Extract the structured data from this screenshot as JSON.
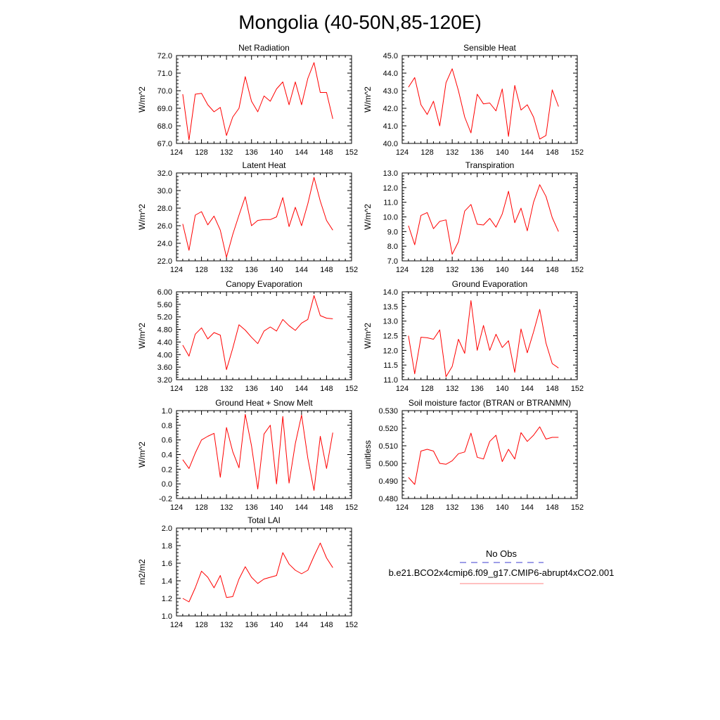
{
  "figure_title": "Mongolia (40-50N,85-120E)",
  "legend": {
    "entries": [
      {
        "label": "No Obs",
        "color": "#3b3bd0",
        "dash": "dashed"
      },
      {
        "label": "b.e21.BCO2x4cmip6.f09_g17.CMIP6-abrupt4xCO2.001",
        "color": "#ff8080",
        "dash": "solid"
      }
    ]
  },
  "colors": {
    "series": "#ff0000",
    "axis": "#000000"
  },
  "chart_data": [
    {
      "type": "line",
      "title": "Net Radiation",
      "ylabel": "W/m^2",
      "xlim": [
        124,
        152
      ],
      "ylim": [
        67.0,
        72.0
      ],
      "decimals": 1,
      "xticks": [
        124,
        128,
        132,
        136,
        140,
        144,
        148,
        152
      ],
      "yticks": [
        67.0,
        68.0,
        69.0,
        70.0,
        71.0,
        72.0
      ],
      "series": [
        {
          "name": "b.e21.BCO2x4cmip6.f09_g17.CMIP6-abrupt4xCO2.001",
          "x": [
            125,
            126,
            127,
            128,
            129,
            130,
            131,
            132,
            133,
            134,
            135,
            136,
            137,
            138,
            139,
            140,
            141,
            142,
            143,
            144,
            145,
            146,
            147,
            148,
            149
          ],
          "values": [
            69.8,
            67.2,
            69.8,
            69.85,
            69.2,
            68.8,
            69.05,
            67.45,
            68.5,
            69.0,
            70.8,
            69.4,
            68.8,
            69.7,
            69.4,
            70.1,
            70.5,
            69.2,
            70.5,
            69.2,
            70.7,
            71.6,
            69.9,
            69.9,
            68.4
          ]
        }
      ]
    },
    {
      "type": "line",
      "title": "Sensible Heat",
      "ylabel": "W/m^2",
      "xlim": [
        124,
        152
      ],
      "ylim": [
        40.0,
        45.0
      ],
      "decimals": 1,
      "xticks": [
        124,
        128,
        132,
        136,
        140,
        144,
        148,
        152
      ],
      "yticks": [
        40.0,
        41.0,
        42.0,
        43.0,
        44.0,
        45.0
      ],
      "series": [
        {
          "name": "b.e21.BCO2x4cmip6.f09_g17.CMIP6-abrupt4xCO2.001",
          "x": [
            125,
            126,
            127,
            128,
            129,
            130,
            131,
            132,
            133,
            134,
            135,
            136,
            137,
            138,
            139,
            140,
            141,
            142,
            143,
            144,
            145,
            146,
            147,
            148,
            149
          ],
          "values": [
            43.2,
            43.75,
            42.2,
            41.65,
            42.4,
            41.0,
            43.45,
            44.25,
            43.0,
            41.5,
            40.6,
            42.8,
            42.25,
            42.3,
            41.85,
            43.1,
            40.4,
            43.3,
            41.9,
            42.2,
            41.5,
            40.25,
            40.45,
            43.05,
            42.1
          ]
        }
      ]
    },
    {
      "type": "line",
      "title": "Latent Heat",
      "ylabel": "W/m^2",
      "xlim": [
        124,
        152
      ],
      "ylim": [
        22.0,
        32.0
      ],
      "decimals": 1,
      "xticks": [
        124,
        128,
        132,
        136,
        140,
        144,
        148,
        152
      ],
      "yticks": [
        22.0,
        24.0,
        26.0,
        28.0,
        30.0,
        32.0
      ],
      "series": [
        {
          "name": "b.e21.BCO2x4cmip6.f09_g17.CMIP6-abrupt4xCO2.001",
          "x": [
            125,
            126,
            127,
            128,
            129,
            130,
            131,
            132,
            133,
            134,
            135,
            136,
            137,
            138,
            139,
            140,
            141,
            142,
            143,
            144,
            145,
            146,
            147,
            148,
            149
          ],
          "values": [
            26.2,
            23.2,
            27.2,
            27.6,
            26.1,
            27.1,
            25.5,
            22.4,
            25.0,
            27.2,
            29.3,
            26.0,
            26.6,
            26.7,
            26.7,
            27.0,
            29.2,
            25.9,
            28.1,
            26.0,
            28.5,
            31.5,
            28.8,
            26.6,
            25.5
          ]
        }
      ]
    },
    {
      "type": "line",
      "title": "Transpiration",
      "ylabel": "W/m^2",
      "xlim": [
        124,
        152
      ],
      "ylim": [
        7.0,
        13.0
      ],
      "decimals": 1,
      "xticks": [
        124,
        128,
        132,
        136,
        140,
        144,
        148,
        152
      ],
      "yticks": [
        7.0,
        8.0,
        9.0,
        10.0,
        11.0,
        12.0,
        13.0
      ],
      "series": [
        {
          "name": "b.e21.BCO2x4cmip6.f09_g17.CMIP6-abrupt4xCO2.001",
          "x": [
            125,
            126,
            127,
            128,
            129,
            130,
            131,
            132,
            133,
            134,
            135,
            136,
            137,
            138,
            139,
            140,
            141,
            142,
            143,
            144,
            145,
            146,
            147,
            148,
            149
          ],
          "values": [
            9.4,
            8.1,
            10.1,
            10.3,
            9.2,
            9.7,
            9.8,
            7.45,
            8.3,
            10.4,
            10.85,
            9.5,
            9.45,
            9.9,
            9.3,
            10.2,
            11.75,
            9.6,
            10.6,
            9.05,
            11.0,
            12.2,
            11.4,
            9.95,
            9.0
          ]
        }
      ]
    },
    {
      "type": "line",
      "title": "Canopy Evaporation",
      "ylabel": "W/m^2",
      "xlim": [
        124,
        152
      ],
      "ylim": [
        3.2,
        6.0
      ],
      "decimals": 2,
      "xticks": [
        124,
        128,
        132,
        136,
        140,
        144,
        148,
        152
      ],
      "yticks": [
        3.2,
        3.6,
        4.0,
        4.4,
        4.8,
        5.2,
        5.6,
        6.0
      ],
      "series": [
        {
          "name": "b.e21.BCO2x4cmip6.f09_g17.CMIP6-abrupt4xCO2.001",
          "x": [
            125,
            126,
            127,
            128,
            129,
            130,
            131,
            132,
            133,
            134,
            135,
            136,
            137,
            138,
            139,
            140,
            141,
            142,
            143,
            144,
            145,
            146,
            147,
            148,
            149
          ],
          "values": [
            4.3,
            3.95,
            4.65,
            4.85,
            4.5,
            4.7,
            4.62,
            3.52,
            4.2,
            4.95,
            4.78,
            4.55,
            4.35,
            4.75,
            4.88,
            4.75,
            5.12,
            4.92,
            4.77,
            5.0,
            5.12,
            5.88,
            5.24,
            5.16,
            5.14
          ]
        }
      ]
    },
    {
      "type": "line",
      "title": "Ground Evaporation",
      "ylabel": "W/m^2",
      "xlim": [
        124,
        152
      ],
      "ylim": [
        11.0,
        14.0
      ],
      "decimals": 1,
      "xticks": [
        124,
        128,
        132,
        136,
        140,
        144,
        148,
        152
      ],
      "yticks": [
        11.0,
        11.5,
        12.0,
        12.5,
        13.0,
        13.5,
        14.0
      ],
      "series": [
        {
          "name": "b.e21.BCO2x4cmip6.f09_g17.CMIP6-abrupt4xCO2.001",
          "x": [
            125,
            126,
            127,
            128,
            129,
            130,
            131,
            132,
            133,
            134,
            135,
            136,
            137,
            138,
            139,
            140,
            141,
            142,
            143,
            144,
            145,
            146,
            147,
            148,
            149
          ],
          "values": [
            12.5,
            11.2,
            12.45,
            12.43,
            12.38,
            12.7,
            11.1,
            11.45,
            12.38,
            11.9,
            13.7,
            12.0,
            12.85,
            12.0,
            12.55,
            12.1,
            12.33,
            11.25,
            12.73,
            11.92,
            12.63,
            13.4,
            12.25,
            11.55,
            11.4
          ]
        }
      ]
    },
    {
      "type": "line",
      "title": "Ground Heat + Snow Melt",
      "ylabel": "W/m^2",
      "xlim": [
        124,
        152
      ],
      "ylim": [
        -0.2,
        1.0
      ],
      "decimals": 1,
      "xticks": [
        124,
        128,
        132,
        136,
        140,
        144,
        148,
        152
      ],
      "yticks": [
        -0.2,
        0.0,
        0.2,
        0.4,
        0.6,
        0.8,
        1.0
      ],
      "series": [
        {
          "name": "b.e21.BCO2x4cmip6.f09_g17.CMIP6-abrupt4xCO2.001",
          "x": [
            125,
            126,
            127,
            128,
            129,
            130,
            131,
            132,
            133,
            134,
            135,
            136,
            137,
            138,
            139,
            140,
            141,
            142,
            143,
            144,
            145,
            146,
            147,
            148,
            149
          ],
          "values": [
            0.33,
            0.21,
            0.42,
            0.6,
            0.65,
            0.69,
            0.09,
            0.77,
            0.44,
            0.22,
            0.95,
            0.52,
            -0.07,
            0.68,
            0.8,
            0.0,
            0.92,
            0.01,
            0.55,
            0.94,
            0.35,
            -0.09,
            0.65,
            0.21,
            0.7
          ]
        }
      ]
    },
    {
      "type": "line",
      "title": "Soil moisture factor (BTRAN or BTRANMN)",
      "ylabel": "unitless",
      "xlim": [
        124,
        152
      ],
      "ylim": [
        0.48,
        0.53
      ],
      "decimals": 3,
      "xticks": [
        124,
        128,
        132,
        136,
        140,
        144,
        148,
        152
      ],
      "yticks": [
        0.48,
        0.49,
        0.5,
        0.51,
        0.52,
        0.53
      ],
      "series": [
        {
          "name": "b.e21.BCO2x4cmip6.f09_g17.CMIP6-abrupt4xCO2.001",
          "x": [
            125,
            126,
            127,
            128,
            129,
            130,
            131,
            132,
            133,
            134,
            135,
            136,
            137,
            138,
            139,
            140,
            141,
            142,
            143,
            144,
            145,
            146,
            147,
            148,
            149
          ],
          "values": [
            0.492,
            0.488,
            0.507,
            0.508,
            0.507,
            0.5,
            0.4995,
            0.5015,
            0.5055,
            0.5065,
            0.5172,
            0.5035,
            0.5025,
            0.5125,
            0.516,
            0.501,
            0.508,
            0.5025,
            0.5175,
            0.5125,
            0.516,
            0.5208,
            0.5138,
            0.5148,
            0.5148
          ]
        }
      ]
    },
    {
      "type": "line",
      "title": "Total LAI",
      "ylabel": "m2/m2",
      "xlim": [
        124,
        152
      ],
      "ylim": [
        1.0,
        2.0
      ],
      "decimals": 1,
      "xticks": [
        124,
        128,
        132,
        136,
        140,
        144,
        148,
        152
      ],
      "yticks": [
        1.0,
        1.2,
        1.4,
        1.6,
        1.8,
        2.0
      ],
      "series": [
        {
          "name": "b.e21.BCO2x4cmip6.f09_g17.CMIP6-abrupt4xCO2.001",
          "x": [
            125,
            126,
            127,
            128,
            129,
            130,
            131,
            132,
            133,
            134,
            135,
            136,
            137,
            138,
            139,
            140,
            141,
            142,
            143,
            144,
            145,
            146,
            147,
            148,
            149
          ],
          "values": [
            1.2,
            1.16,
            1.32,
            1.51,
            1.44,
            1.32,
            1.46,
            1.21,
            1.22,
            1.42,
            1.56,
            1.44,
            1.37,
            1.42,
            1.44,
            1.46,
            1.72,
            1.59,
            1.52,
            1.48,
            1.52,
            1.68,
            1.83,
            1.66,
            1.55
          ]
        }
      ]
    }
  ]
}
